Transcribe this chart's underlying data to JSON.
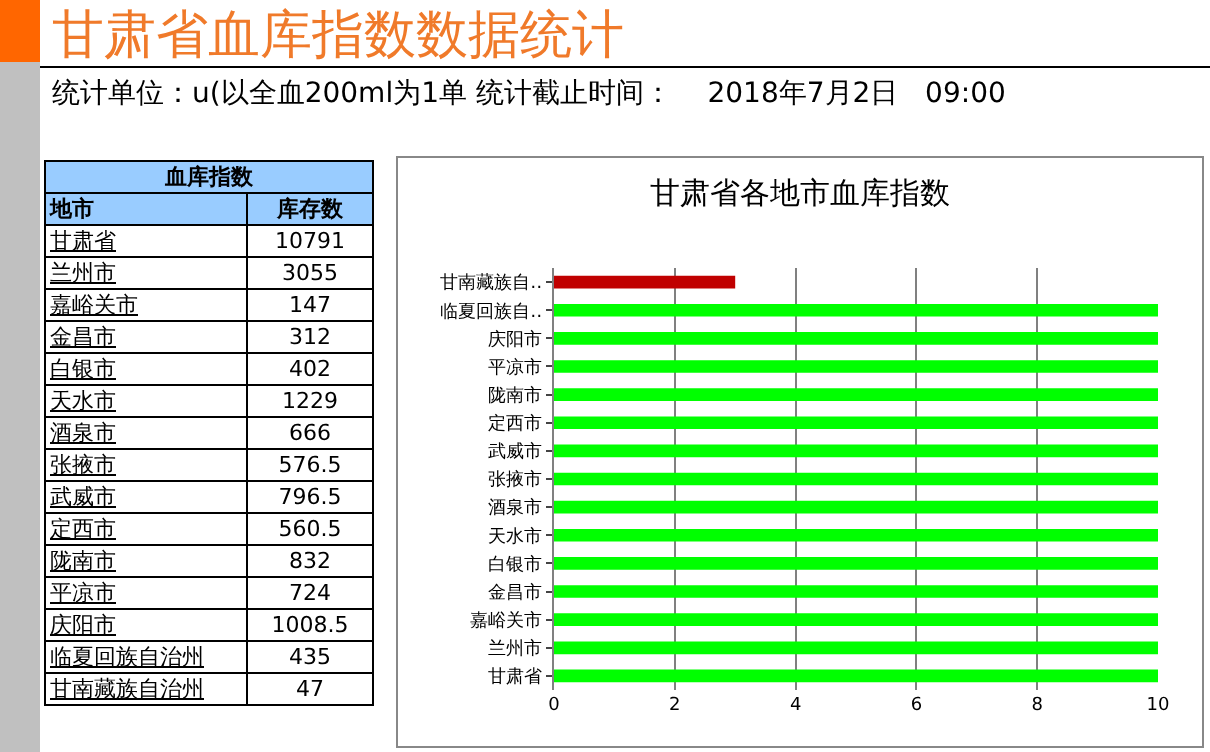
{
  "chart_data": [
    {
      "type": "other",
      "title": "甘肃省血库指数数据统计",
      "subtitle": "统计单位：u(以全血200ml为1单 统计截止时间：    2018年7月2日   09:00",
      "annotations": [
        "血库指数"
      ],
      "xlabel": "地市",
      "ylabel": "库存数",
      "categories": [
        "甘肃省",
        "兰州市",
        "嘉峪关市",
        "金昌市",
        "白银市",
        "天水市",
        "酒泉市",
        "张掖市",
        "武威市",
        "定西市",
        "陇南市",
        "平凉市",
        "庆阳市",
        "临夏回族自治州",
        "甘南藏族自治州"
      ],
      "values": [
        10791,
        3055,
        147,
        312,
        402,
        1229,
        666,
        576.5,
        796.5,
        560.5,
        832,
        724,
        1008.5,
        435,
        47
      ],
      "data_labels": true
    },
    {
      "type": "bar",
      "orientation": "horizontal",
      "title": "甘肃省各地市血库指数",
      "categories": [
        "甘南藏族自‥",
        "临夏回族自‥",
        "庆阳市",
        "平凉市",
        "陇南市",
        "定西市",
        "武威市",
        "张掖市",
        "酒泉市",
        "天水市",
        "白银市",
        "金昌市",
        "嘉峪关市",
        "兰州市",
        "甘肃省"
      ],
      "values": [
        3,
        10,
        10,
        10,
        10,
        10,
        10,
        10,
        10,
        10,
        10,
        10,
        10,
        10,
        10
      ],
      "colors": [
        "#c00000",
        "#00ff00",
        "#00ff00",
        "#00ff00",
        "#00ff00",
        "#00ff00",
        "#00ff00",
        "#00ff00",
        "#00ff00",
        "#00ff00",
        "#00ff00",
        "#00ff00",
        "#00ff00",
        "#00ff00",
        "#00ff00"
      ],
      "xlim": [
        0,
        10
      ],
      "xticks": [
        0,
        2,
        4,
        6,
        8,
        10
      ],
      "grid": "x"
    }
  ]
}
